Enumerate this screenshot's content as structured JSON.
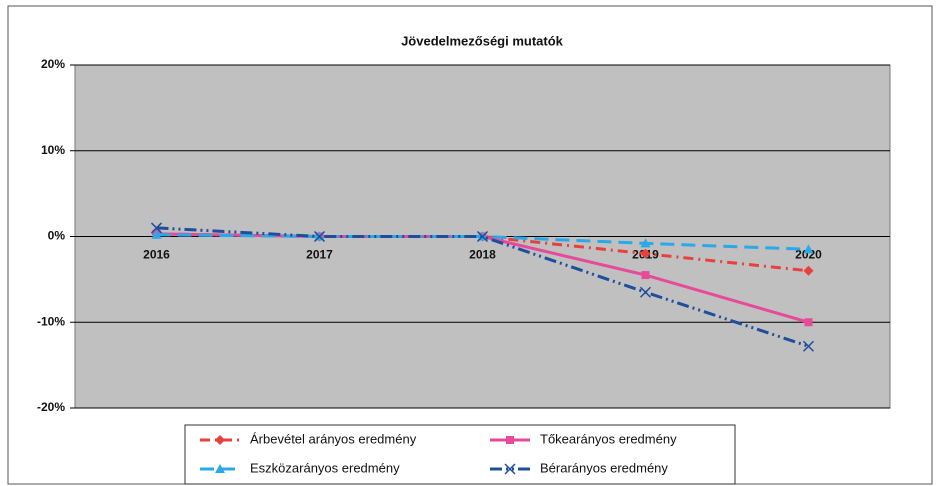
{
  "chart_data": {
    "type": "line",
    "title": "Jövedelmezőségi mutatók",
    "categories": [
      "2016",
      "2017",
      "2018",
      "2019",
      "2020"
    ],
    "ylim": [
      -20,
      20
    ],
    "yticks": [
      {
        "value": -20,
        "label": "-20%"
      },
      {
        "value": -10,
        "label": "-10%"
      },
      {
        "value": 0,
        "label": "0%"
      },
      {
        "value": 10,
        "label": "10%"
      },
      {
        "value": 20,
        "label": "20%"
      }
    ],
    "grid": true,
    "legend": "bottom",
    "series": [
      {
        "name": "Árbevétel arányos eredmény",
        "color": "#e8403c",
        "dash": "10 5 2 5",
        "marker": "diamond",
        "values": [
          0.3,
          0,
          0,
          -2,
          -4
        ]
      },
      {
        "name": "Tőkearányos eredmény",
        "color": "#e84a9a",
        "dash": "none",
        "marker": "square",
        "values": [
          0.3,
          0,
          0,
          -4.5,
          -10
        ]
      },
      {
        "name": "Eszközarányos eredmény",
        "color": "#2aa8e8",
        "dash": "14 7",
        "marker": "triangle",
        "values": [
          0.2,
          0,
          0,
          -0.8,
          -1.5
        ]
      },
      {
        "name": "Bérarányos eredmény",
        "color": "#1f4e9c",
        "dash": "12 4 2 4 2 4",
        "marker": "cross",
        "values": [
          1,
          0,
          0,
          -6.5,
          -12.8
        ]
      }
    ]
  }
}
